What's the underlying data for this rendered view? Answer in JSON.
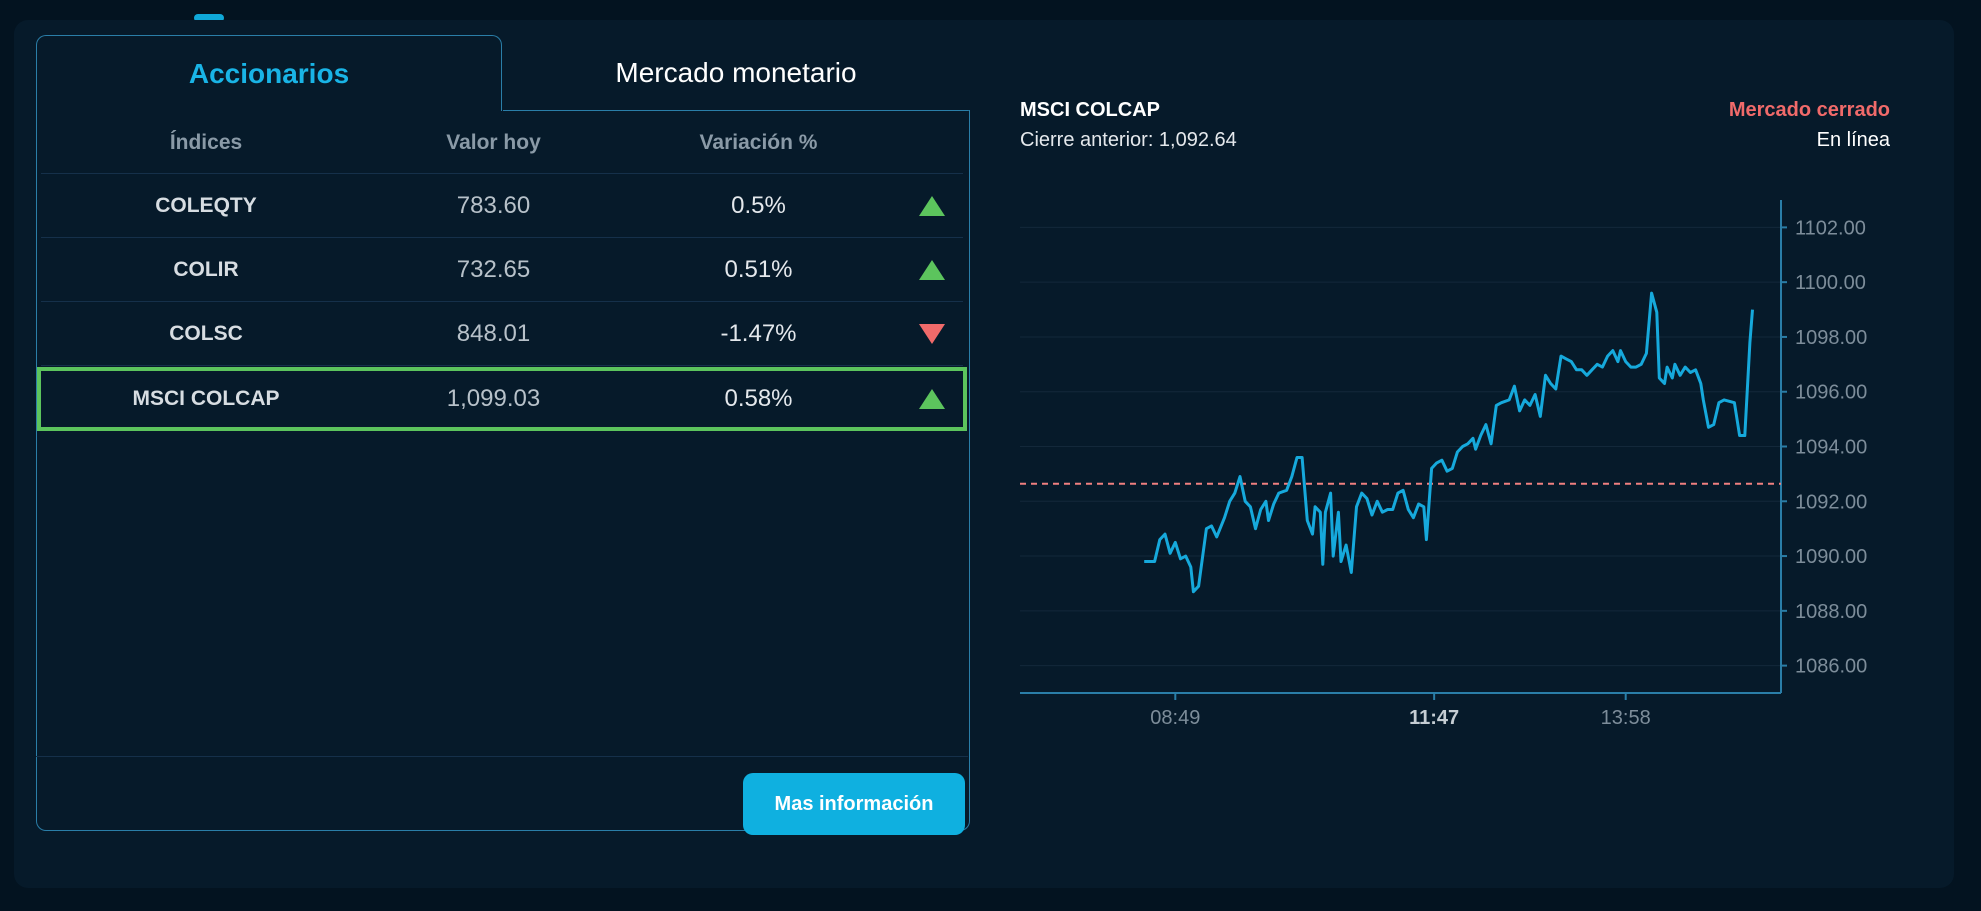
{
  "tabs": {
    "equities": "Accionarios",
    "money_market": "Mercado monetario"
  },
  "table": {
    "headers": {
      "index": "Índices",
      "value": "Valor hoy",
      "change": "Variación %"
    },
    "rows": [
      {
        "name": "COLEQTY",
        "value": "783.60",
        "change": "0.5%",
        "direction": "up"
      },
      {
        "name": "COLIR",
        "value": "732.65",
        "change": "0.51%",
        "direction": "up"
      },
      {
        "name": "COLSC",
        "value": "848.01",
        "change": "-1.47%",
        "direction": "down"
      },
      {
        "name": "MSCI COLCAP",
        "value": "1,099.03",
        "change": "0.58%",
        "direction": "up",
        "selected": true
      }
    ]
  },
  "more_info_button": "Mas información",
  "chart_header": {
    "title": "MSCI COLCAP",
    "previous_close": "Cierre anterior: 1,092.64",
    "market_status": "Mercado cerrado",
    "connection": "En línea"
  },
  "colors": {
    "accent": "#19b4e6",
    "up": "#5cc45d",
    "down": "#f06a6a",
    "line": "#16a9dc",
    "reference": "#f08080"
  },
  "chart_data": {
    "type": "line",
    "title": "MSCI COLCAP",
    "reference_line": 1092.64,
    "y_ticks": [
      "1086.00",
      "1088.00",
      "1090.00",
      "1092.00",
      "1094.00",
      "1096.00",
      "1098.00",
      "1100.00",
      "1102.00"
    ],
    "ylim": [
      1085,
      1103
    ],
    "x_ticks": [
      {
        "label": "08:49",
        "x": 0.0,
        "bold": false
      },
      {
        "label": "11:47",
        "x": 0.5,
        "bold": true
      },
      {
        "label": "13:58",
        "x": 0.87,
        "bold": false
      }
    ],
    "xlim": [
      -0.3,
      1.17
    ],
    "grid": true,
    "series": [
      {
        "values": [
          [
            -0.06,
            1089.8
          ],
          [
            -0.04,
            1089.8
          ],
          [
            -0.03,
            1090.6
          ],
          [
            -0.02,
            1090.8
          ],
          [
            -0.01,
            1090.1
          ],
          [
            0.0,
            1090.5
          ],
          [
            0.01,
            1089.9
          ],
          [
            0.02,
            1090.0
          ],
          [
            0.03,
            1089.6
          ],
          [
            0.035,
            1088.7
          ],
          [
            0.045,
            1088.9
          ],
          [
            0.06,
            1091.0
          ],
          [
            0.07,
            1091.1
          ],
          [
            0.08,
            1090.7
          ],
          [
            0.095,
            1091.4
          ],
          [
            0.105,
            1092.0
          ],
          [
            0.115,
            1092.3
          ],
          [
            0.125,
            1092.9
          ],
          [
            0.135,
            1092.0
          ],
          [
            0.145,
            1091.8
          ],
          [
            0.155,
            1091.0
          ],
          [
            0.165,
            1091.7
          ],
          [
            0.175,
            1092.0
          ],
          [
            0.18,
            1091.3
          ],
          [
            0.19,
            1091.9
          ],
          [
            0.2,
            1092.3
          ],
          [
            0.215,
            1092.4
          ],
          [
            0.225,
            1092.9
          ],
          [
            0.235,
            1093.6
          ],
          [
            0.245,
            1093.6
          ],
          [
            0.255,
            1091.3
          ],
          [
            0.265,
            1090.8
          ],
          [
            0.27,
            1091.8
          ],
          [
            0.28,
            1091.6
          ],
          [
            0.285,
            1089.7
          ],
          [
            0.29,
            1091.6
          ],
          [
            0.3,
            1092.3
          ],
          [
            0.305,
            1090.0
          ],
          [
            0.315,
            1091.6
          ],
          [
            0.32,
            1089.8
          ],
          [
            0.33,
            1090.4
          ],
          [
            0.34,
            1089.4
          ],
          [
            0.35,
            1091.8
          ],
          [
            0.36,
            1092.3
          ],
          [
            0.37,
            1092.1
          ],
          [
            0.38,
            1091.5
          ],
          [
            0.39,
            1092.0
          ],
          [
            0.4,
            1091.6
          ],
          [
            0.41,
            1091.7
          ],
          [
            0.42,
            1091.7
          ],
          [
            0.43,
            1092.3
          ],
          [
            0.44,
            1092.4
          ],
          [
            0.45,
            1091.7
          ],
          [
            0.46,
            1091.4
          ],
          [
            0.47,
            1091.9
          ],
          [
            0.48,
            1091.8
          ],
          [
            0.485,
            1090.6
          ],
          [
            0.495,
            1093.2
          ],
          [
            0.505,
            1093.4
          ],
          [
            0.515,
            1093.5
          ],
          [
            0.525,
            1093.1
          ],
          [
            0.535,
            1093.2
          ],
          [
            0.545,
            1093.8
          ],
          [
            0.555,
            1094.0
          ],
          [
            0.565,
            1094.1
          ],
          [
            0.575,
            1094.3
          ],
          [
            0.58,
            1093.9
          ],
          [
            0.59,
            1094.4
          ],
          [
            0.6,
            1094.8
          ],
          [
            0.61,
            1094.1
          ],
          [
            0.62,
            1095.5
          ],
          [
            0.63,
            1095.6
          ],
          [
            0.645,
            1095.7
          ],
          [
            0.655,
            1096.2
          ],
          [
            0.665,
            1095.3
          ],
          [
            0.675,
            1095.7
          ],
          [
            0.685,
            1095.5
          ],
          [
            0.695,
            1095.9
          ],
          [
            0.705,
            1095.1
          ],
          [
            0.715,
            1096.6
          ],
          [
            0.725,
            1096.3
          ],
          [
            0.735,
            1096.1
          ],
          [
            0.745,
            1097.3
          ],
          [
            0.755,
            1097.2
          ],
          [
            0.765,
            1097.1
          ],
          [
            0.775,
            1096.8
          ],
          [
            0.785,
            1096.8
          ],
          [
            0.795,
            1096.6
          ],
          [
            0.805,
            1096.8
          ],
          [
            0.815,
            1097.0
          ],
          [
            0.825,
            1096.9
          ],
          [
            0.835,
            1097.3
          ],
          [
            0.845,
            1097.5
          ],
          [
            0.855,
            1097.1
          ],
          [
            0.86,
            1097.5
          ],
          [
            0.87,
            1097.1
          ],
          [
            0.88,
            1096.9
          ],
          [
            0.89,
            1096.9
          ],
          [
            0.9,
            1097.0
          ],
          [
            0.91,
            1097.4
          ],
          [
            0.92,
            1099.6
          ],
          [
            0.93,
            1098.9
          ],
          [
            0.935,
            1096.5
          ],
          [
            0.945,
            1096.3
          ],
          [
            0.95,
            1096.9
          ],
          [
            0.96,
            1096.5
          ],
          [
            0.965,
            1097.0
          ],
          [
            0.975,
            1096.6
          ],
          [
            0.985,
            1096.9
          ],
          [
            0.995,
            1096.7
          ],
          [
            1.005,
            1096.8
          ],
          [
            1.015,
            1096.3
          ],
          [
            1.02,
            1095.7
          ],
          [
            1.03,
            1094.7
          ],
          [
            1.04,
            1094.8
          ],
          [
            1.05,
            1095.6
          ],
          [
            1.06,
            1095.7
          ],
          [
            1.08,
            1095.6
          ],
          [
            1.09,
            1094.4
          ],
          [
            1.1,
            1094.4
          ],
          [
            1.11,
            1097.8
          ],
          [
            1.115,
            1099.0
          ]
        ]
      }
    ]
  }
}
